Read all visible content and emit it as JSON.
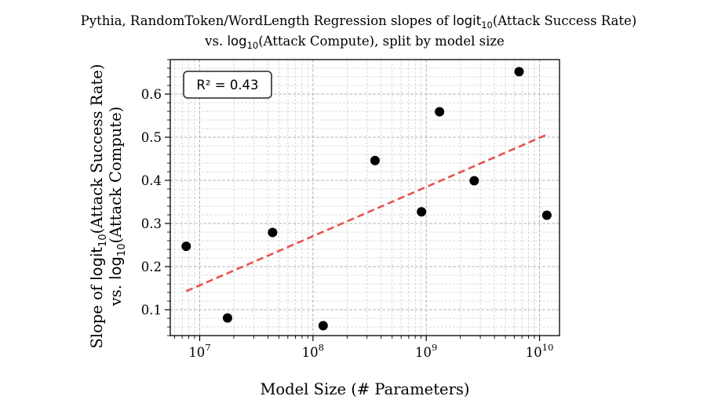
{
  "chart_data": {
    "type": "scatter",
    "title_line1_prefix": "Pythia, RandomToken/WordLength Regression slopes of ",
    "title_line1_fn": "logit",
    "title_line1_sub": "10",
    "title_line1_suffix": "(Attack Success Rate)",
    "title_line2_prefix": "vs. ",
    "title_line2_fn": "log",
    "title_line2_sub": "10",
    "title_line2_suffix": "(Attack Compute), split by model size",
    "xlabel": "Model Size (# Parameters)",
    "ylabel_line1_prefix": "Slope of ",
    "ylabel_line1_fn": "logit",
    "ylabel_line1_sub": "10",
    "ylabel_line1_suffix": "(Attack Success Rate)",
    "ylabel_line2_prefix": "vs. ",
    "ylabel_line2_fn": "log",
    "ylabel_line2_sub": "10",
    "ylabel_line2_suffix": "(Attack Compute)",
    "x_scale": "log",
    "xlim": [
      5500000,
      15000000000
    ],
    "ylim": [
      0.04,
      0.68
    ],
    "x_tick_base": "10",
    "x_tick_exponents": [
      "7",
      "8",
      "9",
      "10"
    ],
    "y_ticks": [
      "0.1",
      "0.2",
      "0.3",
      "0.4",
      "0.5",
      "0.6"
    ],
    "grid": true,
    "r2_label": "R² = 0.43",
    "marker_color": "#000000",
    "fit_color": "#e8524f",
    "points": [
      {
        "x": 7600000,
        "y": 0.247
      },
      {
        "x": 17600000,
        "y": 0.081
      },
      {
        "x": 44000000,
        "y": 0.279
      },
      {
        "x": 123000000,
        "y": 0.063
      },
      {
        "x": 353000000,
        "y": 0.446
      },
      {
        "x": 908000000,
        "y": 0.327
      },
      {
        "x": 1310000000,
        "y": 0.559
      },
      {
        "x": 2650000000,
        "y": 0.399
      },
      {
        "x": 6600000000,
        "y": 0.652
      },
      {
        "x": 11600000000,
        "y": 0.319
      }
    ],
    "fit_line": [
      {
        "x": 7600000,
        "y": 0.143
      },
      {
        "x": 11600000000,
        "y": 0.506
      }
    ]
  }
}
